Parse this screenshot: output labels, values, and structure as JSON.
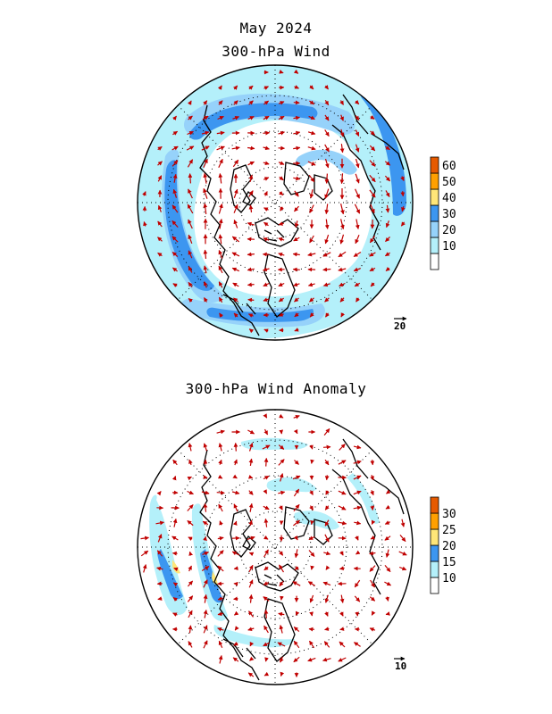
{
  "header": {
    "month": "May 2024"
  },
  "panels": [
    {
      "title": "300-hPa Wind",
      "reference_vector": "20",
      "colorbar": {
        "levels": [
          "10",
          "20",
          "30",
          "40",
          "50",
          "60"
        ],
        "colors": [
          "#ffffff",
          "#b4f0fa",
          "#96d2fa",
          "#3c96f0",
          "#ffe678",
          "#ffa000",
          "#e65a00"
        ]
      }
    },
    {
      "title": "300-hPa Wind Anomaly",
      "reference_vector": "10",
      "colorbar": {
        "levels": [
          "10",
          "15",
          "20",
          "25",
          "30"
        ],
        "colors": [
          "#ffffff",
          "#b4f0fa",
          "#3c96f0",
          "#ffe678",
          "#ffa000",
          "#e65a00"
        ]
      }
    }
  ],
  "colors": {
    "arrow": "#c00000",
    "coast": "#000000",
    "grid": "#000000"
  }
}
